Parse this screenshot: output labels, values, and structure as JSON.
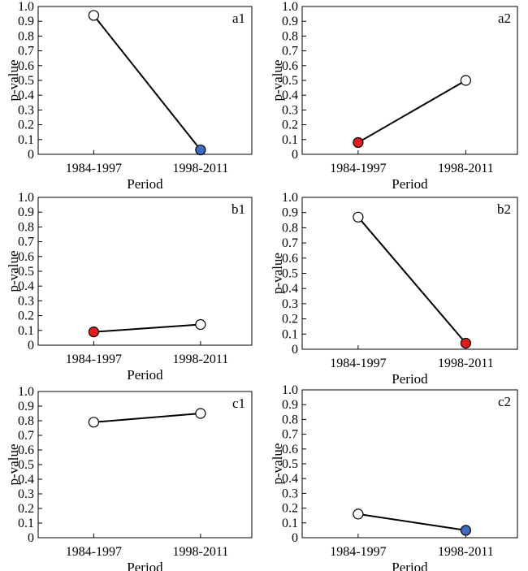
{
  "chart_data": [
    {
      "panel": "a1",
      "type": "line",
      "categories": [
        "1984-1997",
        "1998-2011"
      ],
      "series": [
        {
          "values": [
            0.94,
            0.03
          ]
        }
      ],
      "point_styles": [
        "open",
        "blue"
      ],
      "xlabel": "Period",
      "ylabel": "p-value",
      "ylim": [
        0,
        1.0
      ],
      "yticks": [
        "0",
        "0.1",
        "0.2",
        "0.3",
        "0.4",
        "0.5",
        "0.6",
        "0.7",
        "0.8",
        "0.9",
        "1.0"
      ],
      "legend": "none",
      "grid": false
    },
    {
      "panel": "a2",
      "type": "line",
      "categories": [
        "1984-1997",
        "1998-2011"
      ],
      "series": [
        {
          "values": [
            0.08,
            0.5
          ]
        }
      ],
      "point_styles": [
        "red",
        "open"
      ],
      "xlabel": "Period",
      "ylabel": "p-value",
      "ylim": [
        0,
        1.0
      ],
      "yticks": [
        "0",
        "0.1",
        "0.2",
        "0.3",
        "0.4",
        "0.5",
        "0.6",
        "0.7",
        "0.8",
        "0.9",
        "1.0"
      ],
      "legend": "none",
      "grid": false
    },
    {
      "panel": "b1",
      "type": "line",
      "categories": [
        "1984-1997",
        "1998-2011"
      ],
      "series": [
        {
          "values": [
            0.09,
            0.14
          ]
        }
      ],
      "point_styles": [
        "red",
        "open"
      ],
      "xlabel": "Period",
      "ylabel": "p-value",
      "ylim": [
        0,
        1.0
      ],
      "yticks": [
        "0",
        "0.1",
        "0.2",
        "0.3",
        "0.4",
        "0.5",
        "0.6",
        "0.7",
        "0.8",
        "0.9",
        "1.0"
      ],
      "legend": "none",
      "grid": false
    },
    {
      "panel": "b2",
      "type": "line",
      "categories": [
        "1984-1997",
        "1998-2011"
      ],
      "series": [
        {
          "values": [
            0.87,
            0.04
          ]
        }
      ],
      "point_styles": [
        "open",
        "red"
      ],
      "xlabel": "Period",
      "ylabel": "p-value",
      "ylim": [
        0,
        1.0
      ],
      "yticks": [
        "0",
        "0.1",
        "0.2",
        "0.3",
        "0.4",
        "0.5",
        "0.6",
        "0.7",
        "0.8",
        "0.9",
        "1.0"
      ],
      "legend": "none",
      "grid": false
    },
    {
      "panel": "c1",
      "type": "line",
      "categories": [
        "1984-1997",
        "1998-2011"
      ],
      "series": [
        {
          "values": [
            0.79,
            0.85
          ]
        }
      ],
      "point_styles": [
        "open",
        "open"
      ],
      "xlabel": "Period",
      "ylabel": "p-value",
      "ylim": [
        0,
        1.0
      ],
      "yticks": [
        "0",
        "0.1",
        "0.2",
        "0.3",
        "0.4",
        "0.5",
        "0.6",
        "0.7",
        "0.8",
        "0.9",
        "1.0"
      ],
      "legend": "none",
      "grid": false
    },
    {
      "panel": "c2",
      "type": "line",
      "categories": [
        "1984-1997",
        "1998-2011"
      ],
      "series": [
        {
          "values": [
            0.16,
            0.05
          ]
        }
      ],
      "point_styles": [
        "open",
        "blue"
      ],
      "xlabel": "Period",
      "ylabel": "p-value",
      "ylim": [
        0,
        1.0
      ],
      "yticks": [
        "0",
        "0.1",
        "0.2",
        "0.3",
        "0.4",
        "0.5",
        "0.6",
        "0.7",
        "0.8",
        "0.9",
        "1.0"
      ],
      "legend": "none",
      "grid": false
    }
  ],
  "colors": {
    "blue": "#3d6cc2",
    "red": "#e11c1c",
    "open": "#ffffff",
    "stroke": "#000000"
  }
}
